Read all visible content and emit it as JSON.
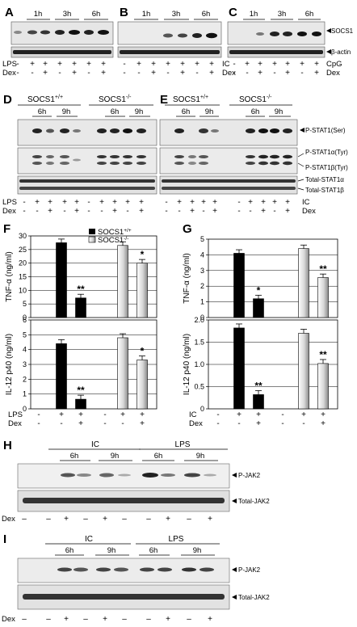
{
  "panels": {
    "A": {
      "label": "A",
      "times": [
        "1h",
        "3h",
        "6h"
      ],
      "rows": [
        {
          "name": "LPS",
          "signs": [
            "-",
            "+",
            "+",
            "+",
            "+",
            "+",
            "+"
          ]
        },
        {
          "name": "Dex",
          "signs": [
            "-",
            "-",
            "+",
            "-",
            "+",
            "-",
            "+"
          ]
        }
      ]
    },
    "B": {
      "label": "B",
      "times": [
        "1h",
        "3h",
        "6h"
      ],
      "rows": [
        {
          "name": "IC",
          "signs": [
            "-",
            "+",
            "+",
            "+",
            "+",
            "+",
            "+"
          ]
        },
        {
          "name": "Dex",
          "signs": [
            "-",
            "-",
            "+",
            "-",
            "+",
            "-",
            "+"
          ]
        }
      ]
    },
    "C": {
      "label": "C",
      "times": [
        "1h",
        "3h",
        "6h"
      ],
      "protein_labels": [
        "SOCS1",
        "β-actin"
      ],
      "rows": [
        {
          "name": "CpG",
          "signs": [
            "-",
            "+",
            "+",
            "+",
            "+",
            "+",
            "+"
          ]
        },
        {
          "name": "Dex",
          "signs": [
            "-",
            "-",
            "+",
            "-",
            "+",
            "-",
            "+"
          ]
        }
      ]
    },
    "D": {
      "label": "D",
      "groups": [
        "SOCS1",
        "SOCS1"
      ],
      "genotype_sup": [
        "+/+",
        "-/-"
      ],
      "times": [
        "6h",
        "9h",
        "6h",
        "9h"
      ],
      "rows": [
        {
          "name": "LPS",
          "signs": [
            "-",
            "+",
            "+",
            "+",
            "+",
            "-",
            "+",
            "+",
            "+",
            "+"
          ]
        },
        {
          "name": "Dex",
          "signs": [
            "-",
            "-",
            "+",
            "-",
            "+",
            "-",
            "-",
            "+",
            "-",
            "+"
          ]
        }
      ]
    },
    "E": {
      "label": "E",
      "groups": [
        "SOCS1",
        "SOCS1"
      ],
      "genotype_sup": [
        "+/+",
        "-/-"
      ],
      "times": [
        "6h",
        "9h",
        "6h",
        "9h"
      ],
      "protein_labels": [
        "P-STAT1(Ser)",
        "P-STAT1α(Tyr)",
        "P-STAT1β(Tyr)",
        "Total-STAT1α",
        "Total-STAT1β"
      ],
      "rows": [
        {
          "name": "IC",
          "signs": [
            "-",
            "+",
            "+",
            "+",
            "+",
            "-",
            "+",
            "+",
            "+",
            "+"
          ]
        },
        {
          "name": "Dex",
          "signs": [
            "-",
            "-",
            "+",
            "-",
            "+",
            "-",
            "-",
            "+",
            "-",
            "+"
          ]
        }
      ]
    },
    "F": {
      "label": "F",
      "legend": [
        {
          "name": "SOCS1",
          "sup": "+/+"
        },
        {
          "name": "SOCS1",
          "sup": "-/-"
        }
      ],
      "rows": [
        {
          "name": "LPS",
          "signs": [
            "-",
            "+",
            "+",
            "-",
            "+",
            "+"
          ]
        },
        {
          "name": "Dex",
          "signs": [
            "-",
            "-",
            "+",
            "-",
            "-",
            "+"
          ]
        }
      ]
    },
    "G": {
      "label": "G",
      "rows": [
        {
          "name": "IC",
          "signs": [
            "-",
            "+",
            "+",
            "-",
            "+",
            "+"
          ]
        },
        {
          "name": "Dex",
          "signs": [
            "-",
            "-",
            "+",
            "-",
            "-",
            "+"
          ]
        }
      ]
    },
    "H": {
      "label": "H",
      "groups": [
        "IC",
        "LPS"
      ],
      "times": [
        "6h",
        "9h",
        "6h",
        "9h"
      ],
      "protein_labels": [
        "P-JAK2",
        "Total-JAK2"
      ],
      "rows": [
        {
          "name": "Dex",
          "signs": [
            "–",
            "–",
            "+",
            "–",
            "+",
            "–",
            "–",
            "+",
            "–",
            "+"
          ]
        }
      ]
    },
    "I": {
      "label": "I",
      "groups": [
        "IC",
        "LPS"
      ],
      "times": [
        "6h",
        "9h",
        "6h",
        "9h"
      ],
      "protein_labels": [
        "P-JAK2",
        "Total-JAK2"
      ],
      "rows": [
        {
          "name": "Dex",
          "signs": [
            "–",
            "–",
            "+",
            "–",
            "+",
            "–",
            "–",
            "+",
            "–",
            "+"
          ]
        }
      ]
    }
  },
  "chart_data": [
    {
      "type": "bar",
      "panel": "F",
      "ylabel": "TNF-α (ng/ml)",
      "ylim": [
        0,
        30
      ],
      "ticks": [
        0,
        5,
        10,
        15,
        20,
        25,
        30
      ],
      "series": [
        {
          "name": "SOCS1+/+",
          "values": [
            0,
            27.5,
            7.2
          ]
        },
        {
          "name": "SOCS1-/-",
          "values": [
            0,
            26.5,
            20
          ]
        }
      ],
      "annotations": [
        "**",
        "*"
      ]
    },
    {
      "type": "bar",
      "panel": "F",
      "ylabel": "IL-12 p40 (ng/ml)",
      "ylim": [
        0,
        6
      ],
      "ticks": [
        0,
        1,
        2,
        3,
        4,
        5,
        6
      ],
      "series": [
        {
          "name": "SOCS1+/+",
          "values": [
            0,
            4.4,
            0.65
          ]
        },
        {
          "name": "SOCS1-/-",
          "values": [
            0,
            4.8,
            3.3
          ]
        }
      ],
      "annotations": [
        "**",
        "*"
      ]
    },
    {
      "type": "bar",
      "panel": "G",
      "ylabel": "TNF-α (ng/ml)",
      "ylim": [
        0,
        5
      ],
      "ticks": [
        0,
        1,
        2,
        3,
        4,
        5
      ],
      "series": [
        {
          "name": "SOCS1+/+",
          "values": [
            0,
            4.1,
            1.2
          ]
        },
        {
          "name": "SOCS1-/-",
          "values": [
            0,
            4.4,
            2.55
          ]
        }
      ],
      "annotations": [
        "*",
        "**"
      ]
    },
    {
      "type": "bar",
      "panel": "G",
      "ylabel": "IL-12 p40 (ng/ml)",
      "ylim": [
        0,
        2.0
      ],
      "ticks": [
        "0",
        "0.5",
        "1.0",
        "1.5",
        "2.0"
      ],
      "series": [
        {
          "name": "SOCS1+/+",
          "values": [
            0,
            1.82,
            0.32
          ]
        },
        {
          "name": "SOCS1-/-",
          "values": [
            0,
            1.7,
            1.02
          ]
        }
      ],
      "annotations": [
        "**",
        "**"
      ]
    }
  ]
}
